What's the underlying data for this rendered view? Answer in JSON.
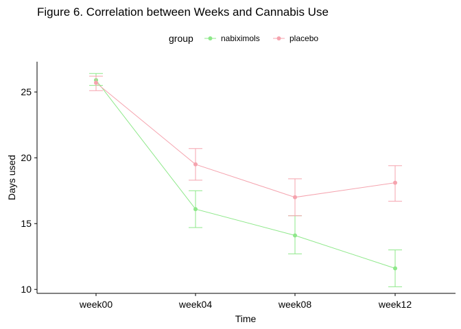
{
  "chart_data": {
    "type": "line",
    "title": "Figure 6. Correlation between Weeks and Cannabis Use",
    "xlabel": "Time",
    "ylabel": "Days used",
    "categories": [
      "week00",
      "week04",
      "week08",
      "week12"
    ],
    "ylim": [
      9.7,
      27.3
    ],
    "yticks": [
      10,
      15,
      20,
      25
    ],
    "grid": false,
    "legend": {
      "title": "group",
      "placement": "top"
    },
    "series": [
      {
        "name": "nabiximols",
        "color": "#8ee88a",
        "values": [
          25.9,
          16.1,
          14.1,
          11.6
        ],
        "lower": [
          25.5,
          14.7,
          12.7,
          10.2
        ],
        "upper": [
          26.4,
          17.5,
          15.6,
          13.0
        ]
      },
      {
        "name": "placebo",
        "color": "#f5a3ae",
        "values": [
          25.7,
          19.5,
          17.0,
          18.1
        ],
        "lower": [
          25.1,
          18.3,
          15.6,
          16.7
        ],
        "upper": [
          26.2,
          20.7,
          18.4,
          19.4
        ]
      }
    ]
  }
}
